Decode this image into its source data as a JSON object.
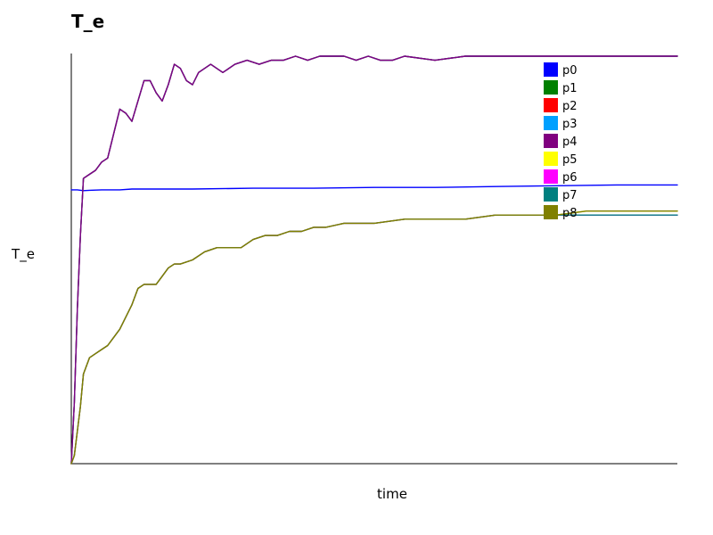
{
  "chart_data": {
    "type": "line",
    "title": "T_e",
    "xlabel": "time",
    "ylabel": "T_e",
    "xlim": [
      0,
      100
    ],
    "ylim": [
      0,
      1
    ],
    "grid": false,
    "legend_position": "top-right",
    "series": [
      {
        "name": "p0",
        "color": "#0000ff",
        "x": [
          0,
          1,
          2,
          3,
          5,
          8,
          10,
          20,
          30,
          40,
          50,
          60,
          70,
          80,
          90,
          100
        ],
        "y": [
          0.672,
          0.672,
          0.67,
          0.671,
          0.672,
          0.672,
          0.674,
          0.674,
          0.676,
          0.676,
          0.678,
          0.678,
          0.68,
          0.682,
          0.684,
          0.684
        ]
      },
      {
        "name": "p1",
        "color": "#008000",
        "x": [
          0,
          0.5,
          1,
          1.5,
          2,
          3,
          4,
          5,
          6,
          7,
          8,
          9,
          10,
          12,
          13,
          14,
          15,
          16,
          17,
          18,
          19,
          20,
          21,
          23,
          25,
          27,
          29,
          31,
          33,
          35,
          37,
          39,
          41,
          43,
          45,
          47,
          49,
          51,
          53,
          55,
          60,
          65,
          70,
          75,
          80,
          85,
          90,
          95,
          100
        ],
        "y": [
          0,
          0.15,
          0.38,
          0.56,
          0.7,
          0.71,
          0.72,
          0.74,
          0.75,
          0.81,
          0.87,
          0.86,
          0.84,
          0.94,
          0.94,
          0.91,
          0.89,
          0.93,
          0.98,
          0.97,
          0.94,
          0.93,
          0.96,
          0.98,
          0.96,
          0.98,
          0.99,
          0.98,
          0.99,
          0.99,
          1.0,
          0.99,
          1.0,
          1.0,
          1.0,
          0.99,
          1.0,
          0.99,
          0.99,
          1.0,
          0.99,
          1.0,
          1.0,
          1.0,
          1.0,
          1.0,
          1.0,
          1.0,
          1.0
        ]
      },
      {
        "name": "p2",
        "color": "#ff0000",
        "x": [
          0,
          0.5,
          1,
          1.5,
          2,
          3,
          4,
          5,
          6,
          7,
          8,
          9,
          10,
          12,
          13,
          14,
          15,
          16,
          17,
          18,
          19,
          20,
          21,
          23,
          25,
          27,
          29,
          31,
          33,
          35,
          37,
          39,
          41,
          43,
          45,
          47,
          49,
          51,
          53,
          55,
          60,
          65,
          70,
          75,
          80,
          85,
          90,
          95,
          100
        ],
        "y": [
          0,
          0.15,
          0.38,
          0.56,
          0.7,
          0.71,
          0.72,
          0.74,
          0.75,
          0.81,
          0.87,
          0.86,
          0.84,
          0.94,
          0.94,
          0.91,
          0.89,
          0.93,
          0.98,
          0.97,
          0.94,
          0.93,
          0.96,
          0.98,
          0.96,
          0.98,
          0.99,
          0.98,
          0.99,
          0.99,
          1.0,
          0.99,
          1.0,
          1.0,
          1.0,
          0.99,
          1.0,
          0.99,
          0.99,
          1.0,
          0.99,
          1.0,
          1.0,
          1.0,
          1.0,
          1.0,
          1.0,
          1.0,
          1.0
        ]
      },
      {
        "name": "p3",
        "color": "#00a0ff",
        "x": [
          0,
          0.5,
          1,
          1.5,
          2,
          3,
          4,
          5,
          6,
          7,
          8,
          9,
          10,
          12,
          13,
          14,
          15,
          16,
          17,
          18,
          19,
          20,
          21,
          23,
          25,
          27,
          29,
          31,
          33,
          35,
          37,
          39,
          41,
          43,
          45,
          47,
          49,
          51,
          53,
          55,
          60,
          65,
          70,
          75,
          80,
          85,
          90,
          95,
          100
        ],
        "y": [
          0,
          0.15,
          0.38,
          0.56,
          0.7,
          0.71,
          0.72,
          0.74,
          0.75,
          0.81,
          0.87,
          0.86,
          0.84,
          0.94,
          0.94,
          0.91,
          0.89,
          0.93,
          0.98,
          0.97,
          0.94,
          0.93,
          0.96,
          0.98,
          0.96,
          0.98,
          0.99,
          0.98,
          0.99,
          0.99,
          1.0,
          0.99,
          1.0,
          1.0,
          1.0,
          0.99,
          1.0,
          0.99,
          0.99,
          1.0,
          0.99,
          1.0,
          1.0,
          1.0,
          1.0,
          1.0,
          1.0,
          1.0,
          1.0
        ]
      },
      {
        "name": "p4",
        "color": "#800080",
        "x": [
          0,
          0.5,
          1,
          1.5,
          2,
          3,
          4,
          5,
          6,
          7,
          8,
          9,
          10,
          12,
          13,
          14,
          15,
          16,
          17,
          18,
          19,
          20,
          21,
          23,
          25,
          27,
          29,
          31,
          33,
          35,
          37,
          39,
          41,
          43,
          45,
          47,
          49,
          51,
          53,
          55,
          60,
          65,
          70,
          75,
          80,
          85,
          90,
          95,
          100
        ],
        "y": [
          0,
          0.15,
          0.38,
          0.56,
          0.7,
          0.71,
          0.72,
          0.74,
          0.75,
          0.81,
          0.87,
          0.86,
          0.84,
          0.94,
          0.94,
          0.91,
          0.89,
          0.93,
          0.98,
          0.97,
          0.94,
          0.93,
          0.96,
          0.98,
          0.96,
          0.98,
          0.99,
          0.98,
          0.99,
          0.99,
          1.0,
          0.99,
          1.0,
          1.0,
          1.0,
          0.99,
          1.0,
          0.99,
          0.99,
          1.0,
          0.99,
          1.0,
          1.0,
          1.0,
          1.0,
          1.0,
          1.0,
          1.0,
          1.0
        ]
      },
      {
        "name": "p5",
        "color": "#ffff00",
        "x": [
          0,
          0.5,
          1,
          1.5,
          2,
          3,
          4,
          5,
          6,
          8,
          10,
          11,
          12,
          13,
          14,
          15,
          16,
          17,
          18,
          20,
          22,
          24,
          26,
          28,
          30,
          32,
          34,
          36,
          38,
          40,
          42,
          45,
          48,
          50,
          55,
          60,
          65,
          70,
          75,
          80,
          85,
          90,
          95,
          100
        ],
        "y": [
          0,
          0.02,
          0.08,
          0.14,
          0.22,
          0.26,
          0.27,
          0.28,
          0.29,
          0.33,
          0.39,
          0.43,
          0.44,
          0.44,
          0.44,
          0.46,
          0.48,
          0.49,
          0.49,
          0.5,
          0.52,
          0.53,
          0.53,
          0.53,
          0.55,
          0.56,
          0.56,
          0.57,
          0.57,
          0.58,
          0.58,
          0.59,
          0.59,
          0.59,
          0.6,
          0.6,
          0.6,
          0.61,
          0.61,
          0.61,
          0.62,
          0.62,
          0.62,
          0.62
        ]
      },
      {
        "name": "p6",
        "color": "#ff00ff",
        "x": [
          0,
          0.5,
          1,
          1.5,
          2,
          3,
          4,
          5,
          6,
          8,
          10,
          11,
          12,
          13,
          14,
          15,
          16,
          17,
          18,
          20,
          22,
          24,
          26,
          28,
          30,
          32,
          34,
          36,
          38,
          40,
          42,
          45,
          48,
          50,
          55,
          60,
          65,
          70,
          75,
          80,
          85,
          90,
          95,
          100
        ],
        "y": [
          0,
          0.02,
          0.08,
          0.14,
          0.22,
          0.26,
          0.27,
          0.28,
          0.29,
          0.33,
          0.39,
          0.43,
          0.44,
          0.44,
          0.44,
          0.46,
          0.48,
          0.49,
          0.49,
          0.5,
          0.52,
          0.53,
          0.53,
          0.53,
          0.55,
          0.56,
          0.56,
          0.57,
          0.57,
          0.58,
          0.58,
          0.59,
          0.59,
          0.59,
          0.6,
          0.6,
          0.6,
          0.61,
          0.61,
          0.61,
          0.61,
          0.61,
          0.61,
          0.61
        ]
      },
      {
        "name": "p7",
        "color": "#008080",
        "x": [
          0,
          0.5,
          1,
          1.5,
          2,
          3,
          4,
          5,
          6,
          8,
          10,
          11,
          12,
          13,
          14,
          15,
          16,
          17,
          18,
          20,
          22,
          24,
          26,
          28,
          30,
          32,
          34,
          36,
          38,
          40,
          42,
          45,
          48,
          50,
          55,
          60,
          65,
          70,
          75,
          80,
          85,
          90,
          95,
          100
        ],
        "y": [
          0,
          0.02,
          0.08,
          0.14,
          0.22,
          0.26,
          0.27,
          0.28,
          0.29,
          0.33,
          0.39,
          0.43,
          0.44,
          0.44,
          0.44,
          0.46,
          0.48,
          0.49,
          0.49,
          0.5,
          0.52,
          0.53,
          0.53,
          0.53,
          0.55,
          0.56,
          0.56,
          0.57,
          0.57,
          0.58,
          0.58,
          0.59,
          0.59,
          0.59,
          0.6,
          0.6,
          0.6,
          0.61,
          0.61,
          0.61,
          0.61,
          0.61,
          0.61,
          0.61
        ]
      },
      {
        "name": "p8",
        "color": "#808000",
        "x": [
          0,
          0.5,
          1,
          1.5,
          2,
          3,
          4,
          5,
          6,
          8,
          10,
          11,
          12,
          13,
          14,
          15,
          16,
          17,
          18,
          20,
          22,
          24,
          26,
          28,
          30,
          32,
          34,
          36,
          38,
          40,
          42,
          45,
          48,
          50,
          55,
          60,
          65,
          70,
          75,
          80,
          85,
          90,
          95,
          100
        ],
        "y": [
          0,
          0.02,
          0.08,
          0.14,
          0.22,
          0.26,
          0.27,
          0.28,
          0.29,
          0.33,
          0.39,
          0.43,
          0.44,
          0.44,
          0.44,
          0.46,
          0.48,
          0.49,
          0.49,
          0.5,
          0.52,
          0.53,
          0.53,
          0.53,
          0.55,
          0.56,
          0.56,
          0.57,
          0.57,
          0.58,
          0.58,
          0.59,
          0.59,
          0.59,
          0.6,
          0.6,
          0.6,
          0.61,
          0.61,
          0.61,
          0.62,
          0.62,
          0.62,
          0.62
        ]
      }
    ]
  }
}
